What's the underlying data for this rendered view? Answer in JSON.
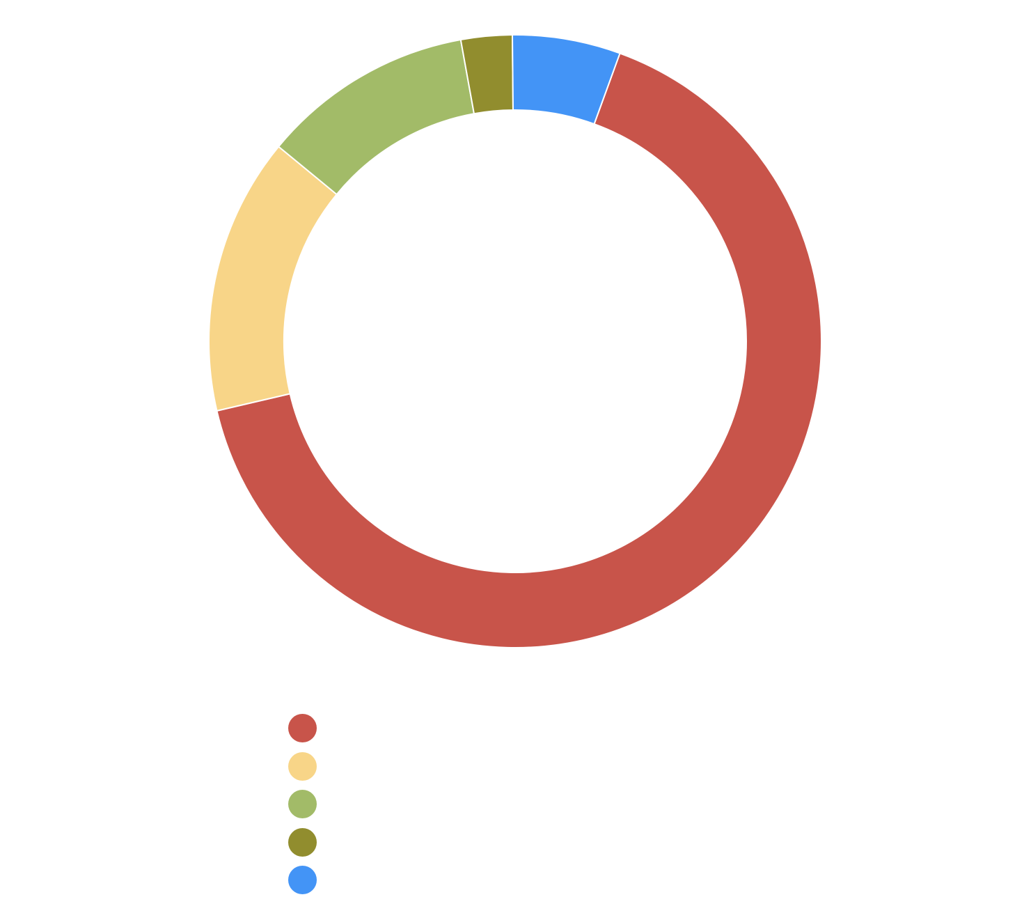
{
  "chart_data": {
    "type": "pie",
    "donut": true,
    "categories": [
      "",
      "",
      "",
      "",
      ""
    ],
    "values": [
      65.8,
      14.6,
      11.2,
      2.7,
      5.7
    ],
    "colors": [
      "#c8544a",
      "#f8d588",
      "#a2bb68",
      "#918d2e",
      "#4394f6"
    ],
    "start_angle_deg": 20,
    "direction": "clockwise",
    "legend": "bottom-left",
    "title": ""
  }
}
